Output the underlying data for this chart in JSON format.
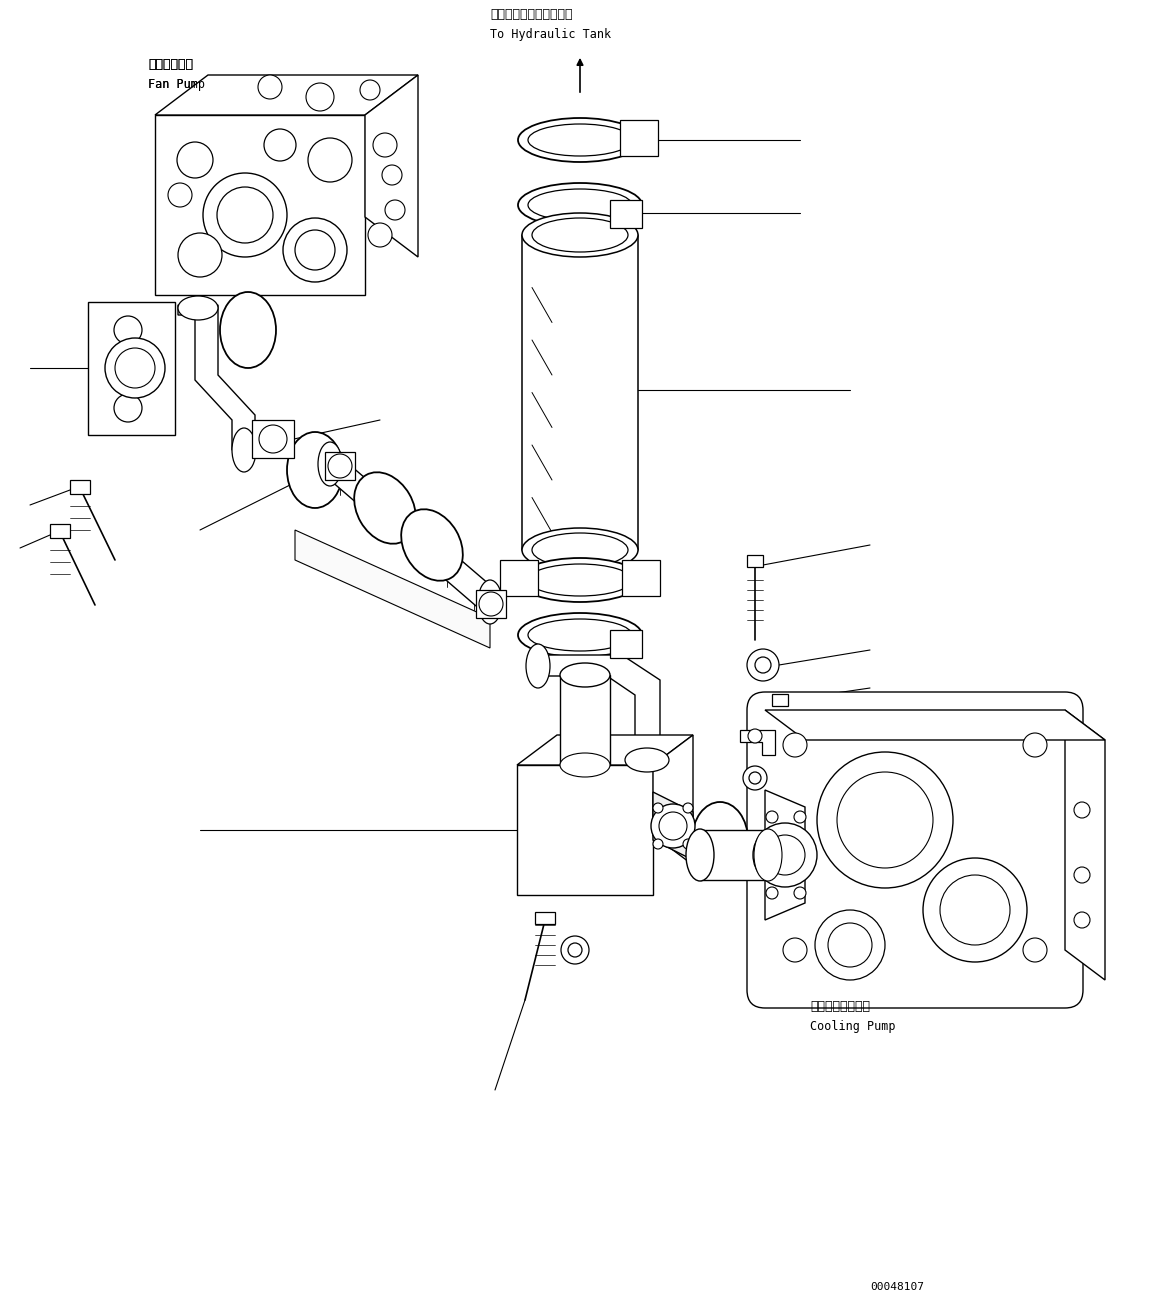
{
  "bg_color": "#ffffff",
  "line_color": "#000000",
  "fig_width": 11.63,
  "fig_height": 13.14,
  "dpi": 100,
  "label_fan_pump_jp": "ファンポンプ",
  "label_fan_pump_en": "Fan Pump",
  "label_cooling_pump_jp": "クーリングポンプ",
  "label_cooling_pump_en": "Cooling Pump",
  "label_hydraulic_jp": "ハイドロリックタンクへ",
  "label_hydraulic_en": "To Hydraulic Tank",
  "part_number": "00048107",
  "lw": 0.9
}
